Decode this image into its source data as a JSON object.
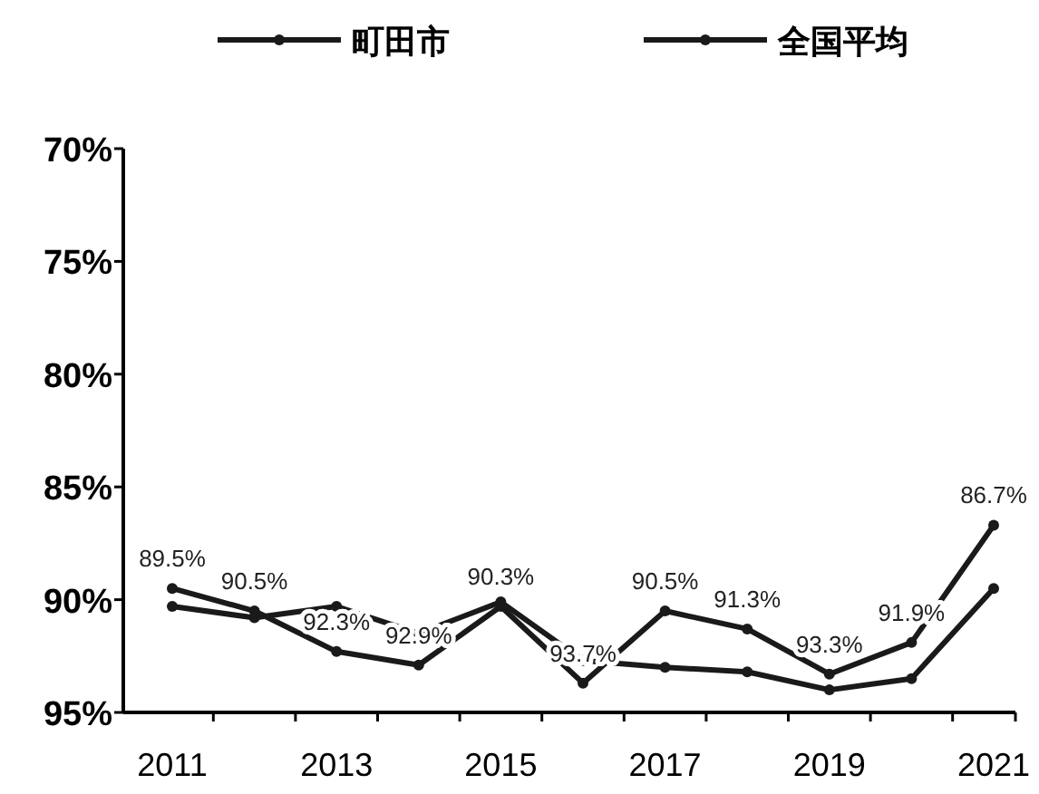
{
  "chart_data": {
    "type": "line",
    "categories": [
      "2011",
      null,
      "2013",
      null,
      "2015",
      null,
      "2017",
      null,
      "2019",
      null,
      "2021"
    ],
    "series": [
      {
        "name": "町田市",
        "color": "#1a1a1a",
        "values": [
          89.5,
          90.5,
          92.3,
          92.9,
          90.3,
          93.7,
          90.5,
          91.3,
          93.3,
          91.9,
          86.7
        ],
        "value_labels": [
          "89.5%",
          "90.5%",
          "92.3%",
          "92.9%",
          "90.3%",
          "93.7%",
          "90.5%",
          "91.3%",
          "93.3%",
          "91.9%",
          "86.7%"
        ]
      },
      {
        "name": "全国平均",
        "color": "#1a1a1a",
        "values": [
          90.3,
          90.8,
          90.3,
          91.5,
          90.1,
          92.7,
          93.0,
          93.2,
          94.0,
          93.5,
          89.5
        ]
      }
    ],
    "ylim": [
      95,
      70
    ],
    "yticks": [
      {
        "value": 70,
        "label": "70%"
      },
      {
        "value": 75,
        "label": "75%"
      },
      {
        "value": 80,
        "label": "80%"
      },
      {
        "value": 85,
        "label": "85%"
      },
      {
        "value": 90,
        "label": "90%"
      },
      {
        "value": 95,
        "label": "95%"
      }
    ],
    "legend": "top",
    "marker": "circle",
    "line_style": "solid",
    "grid": false
  }
}
